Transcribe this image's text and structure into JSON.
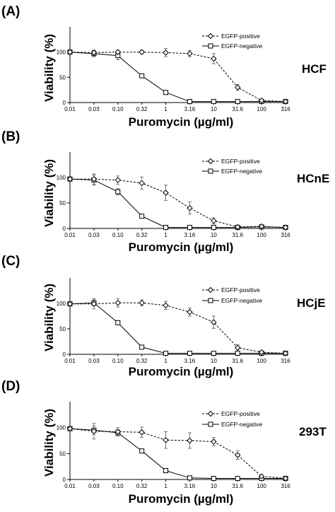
{
  "chart_data": [
    {
      "type": "line",
      "panel_label": "(A)",
      "cell_label": "HCF",
      "xlabel": "Puromycin (µg/ml)",
      "ylabel": "Viability (%)",
      "x": [
        "0.01",
        "0.03",
        "0.10",
        "0.32",
        "1",
        "3.16",
        "10",
        "31.6",
        "100",
        "316"
      ],
      "yticks": [
        "0",
        "50",
        "100"
      ],
      "ylim": [
        0,
        150
      ],
      "legend_position": "top-right",
      "series": [
        {
          "name": "EGFP-positive",
          "marker": "diamond",
          "style": "dashed",
          "values": [
            100,
            99,
            100,
            100,
            99,
            97,
            87,
            30,
            4,
            2
          ],
          "errors": [
            2,
            5,
            4,
            4,
            8,
            6,
            10,
            6,
            2,
            1
          ]
        },
        {
          "name": "EGFP-negative",
          "marker": "square",
          "style": "solid",
          "values": [
            100,
            97,
            93,
            53,
            20,
            2,
            2,
            2,
            2,
            2
          ],
          "errors": [
            2,
            6,
            8,
            2,
            2,
            1,
            1,
            1,
            1,
            1
          ]
        }
      ]
    },
    {
      "type": "line",
      "panel_label": "(B)",
      "cell_label": "HCnE",
      "xlabel": "Puromycin (µg/ml)",
      "ylabel": "Viability (%)",
      "x": [
        "0.01",
        "0.03",
        "0.10",
        "0.32",
        "1",
        "3.16",
        "10",
        "31.6",
        "100",
        "316"
      ],
      "yticks": [
        "0",
        "50",
        "100"
      ],
      "ylim": [
        0,
        150
      ],
      "legend_position": "top-right",
      "series": [
        {
          "name": "EGFP-positive",
          "marker": "diamond",
          "style": "dashed",
          "values": [
            97,
            97,
            95,
            89,
            70,
            40,
            15,
            3,
            4,
            2
          ],
          "errors": [
            2,
            10,
            8,
            12,
            15,
            12,
            6,
            3,
            2,
            1
          ]
        },
        {
          "name": "EGFP-negative",
          "marker": "square",
          "style": "solid",
          "values": [
            97,
            95,
            72,
            24,
            2,
            2,
            2,
            2,
            3,
            2
          ],
          "errors": [
            2,
            10,
            6,
            2,
            1,
            1,
            1,
            1,
            2,
            1
          ]
        }
      ]
    },
    {
      "type": "line",
      "panel_label": "(C)",
      "cell_label": "HCjE",
      "xlabel": "Puromycin (µg/ml)",
      "ylabel": "Viability (%)",
      "x": [
        "0.01",
        "0.03",
        "0.10",
        "0.32",
        "1",
        "3.16",
        "10",
        "31.6",
        "100",
        "316"
      ],
      "yticks": [
        "0",
        "50",
        "100"
      ],
      "ylim": [
        0,
        150
      ],
      "legend_position": "top-right",
      "series": [
        {
          "name": "EGFP-positive",
          "marker": "diamond",
          "style": "dashed",
          "values": [
            99,
            99,
            101,
            101,
            96,
            83,
            63,
            13,
            4,
            2
          ],
          "errors": [
            2,
            10,
            8,
            6,
            8,
            8,
            12,
            6,
            3,
            1
          ]
        },
        {
          "name": "EGFP-negative",
          "marker": "square",
          "style": "solid",
          "values": [
            99,
            101,
            62,
            14,
            2,
            2,
            2,
            2,
            2,
            2
          ],
          "errors": [
            2,
            6,
            3,
            2,
            1,
            1,
            1,
            1,
            1,
            1
          ]
        }
      ]
    },
    {
      "type": "line",
      "panel_label": "(D)",
      "cell_label": "293T",
      "xlabel": "Puromycin (µg/ml)",
      "ylabel": "Viability (%)",
      "x": [
        "0.01",
        "0.03",
        "0.10",
        "0.32",
        "1",
        "3.16",
        "10",
        "31.6",
        "100",
        "316"
      ],
      "yticks": [
        "0",
        "50",
        "100"
      ],
      "ylim": [
        0,
        150
      ],
      "legend_position": "top-right",
      "series": [
        {
          "name": "EGFP-positive",
          "marker": "diamond",
          "style": "dashed",
          "values": [
            98,
            93,
            92,
            91,
            76,
            75,
            73,
            47,
            6,
            2
          ],
          "errors": [
            2,
            15,
            8,
            10,
            16,
            15,
            8,
            8,
            3,
            1
          ]
        },
        {
          "name": "EGFP-negative",
          "marker": "square",
          "style": "solid",
          "values": [
            98,
            95,
            90,
            55,
            17,
            3,
            2,
            2,
            2,
            2
          ],
          "errors": [
            2,
            8,
            6,
            2,
            2,
            1,
            1,
            1,
            1,
            1
          ]
        }
      ]
    }
  ]
}
